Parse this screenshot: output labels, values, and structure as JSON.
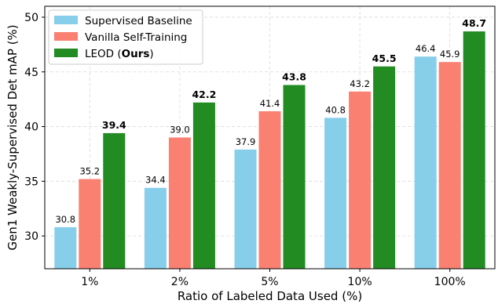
{
  "chart_data": {
    "type": "bar",
    "categories": [
      "1%",
      "2%",
      "5%",
      "10%",
      "100%"
    ],
    "series": [
      {
        "name": "Supervised Baseline",
        "values": [
          30.8,
          34.4,
          37.9,
          40.8,
          46.4
        ],
        "color": "#87ceeb",
        "bold_labels": false
      },
      {
        "name": "Vanilla Self-Training",
        "values": [
          35.2,
          39.0,
          41.4,
          43.2,
          45.9
        ],
        "color": "#fa8072",
        "bold_labels": false
      },
      {
        "name": "LEOD",
        "name_suffix": "Ours",
        "values": [
          39.4,
          42.2,
          43.8,
          45.5,
          48.7
        ],
        "color": "#228b22",
        "bold_labels": true
      }
    ],
    "value_labels": [
      [
        "30.8",
        "34.4",
        "37.9",
        "40.8",
        "46.4"
      ],
      [
        "35.2",
        "39.0",
        "41.4",
        "43.2",
        "45.9"
      ],
      [
        "39.4",
        "42.2",
        "43.8",
        "45.5",
        "48.7"
      ]
    ],
    "title": "",
    "xlabel": "Ratio of Labeled Data Used (%)",
    "ylabel": "Gen1 Weakly-Supervised Det mAP (%)",
    "ylim": [
      27,
      51
    ],
    "yticks": [
      30,
      35,
      40,
      45,
      50
    ],
    "grid": true,
    "legend_position": "top-left"
  }
}
